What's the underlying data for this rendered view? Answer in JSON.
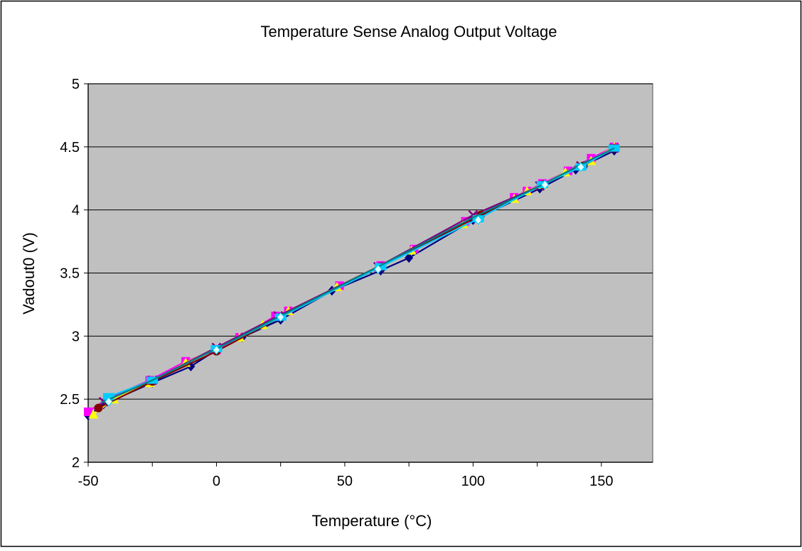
{
  "chart_data": {
    "type": "line",
    "title": "Temperature Sense Analog Output Voltage",
    "xlabel": "Temperature (°C)",
    "ylabel": "Vadout0 (V)",
    "xlim": [
      -50,
      170
    ],
    "ylim": [
      2,
      5
    ],
    "x_ticks": [
      -50,
      0,
      50,
      100,
      150
    ],
    "x_tick_labels": [
      "-50",
      "0",
      "50",
      "100",
      "150"
    ],
    "y_ticks": [
      2,
      2.5,
      3,
      3.5,
      4,
      4.5,
      5
    ],
    "y_tick_labels": [
      "2",
      "2.5",
      "3",
      "3.5",
      "4",
      "4.5",
      "5"
    ],
    "grid": "horizontal",
    "plot_background": "#c0c0c0",
    "legend": "none",
    "series": [
      {
        "color": "#000080",
        "marker": "diamond",
        "points": [
          [
            -50,
            2.37
          ],
          [
            -44,
            2.46
          ],
          [
            -25,
            2.63
          ],
          [
            -10,
            2.76
          ],
          [
            0,
            2.89
          ],
          [
            10,
            2.99
          ],
          [
            25,
            3.13
          ],
          [
            45,
            3.36
          ],
          [
            64,
            3.52
          ],
          [
            75,
            3.62
          ],
          [
            100,
            3.92
          ],
          [
            126,
            4.17
          ],
          [
            140,
            4.32
          ],
          [
            155,
            4.47
          ]
        ]
      },
      {
        "color": "#ff00ff",
        "marker": "square",
        "points": [
          [
            -50,
            2.4
          ],
          [
            -42,
            2.51
          ],
          [
            -26,
            2.65
          ],
          [
            -12,
            2.8
          ],
          [
            0,
            2.89
          ],
          [
            9,
            2.99
          ],
          [
            23,
            3.16
          ],
          [
            28,
            3.2
          ],
          [
            48,
            3.4
          ],
          [
            64,
            3.56
          ],
          [
            77,
            3.69
          ],
          [
            97,
            3.91
          ],
          [
            116,
            4.1
          ],
          [
            121,
            4.15
          ],
          [
            127,
            4.21
          ],
          [
            137,
            4.31
          ],
          [
            146,
            4.41
          ],
          [
            155,
            4.5
          ]
        ]
      },
      {
        "color": "#ffff00",
        "marker": "triangle",
        "points": [
          [
            -48,
            2.38
          ],
          [
            -40,
            2.5
          ],
          [
            -26,
            2.63
          ],
          [
            -12,
            2.79
          ],
          [
            9,
            2.99
          ],
          [
            18,
            3.09
          ],
          [
            28,
            3.2
          ],
          [
            47,
            3.39
          ],
          [
            76,
            3.68
          ],
          [
            96,
            3.89
          ],
          [
            116,
            4.09
          ],
          [
            121,
            4.15
          ],
          [
            127,
            4.2
          ],
          [
            136,
            4.3
          ],
          [
            146,
            4.39
          ],
          [
            155,
            4.5
          ]
        ]
      },
      {
        "color": "#800080",
        "marker": "x",
        "points": [
          [
            -44,
            2.48
          ],
          [
            -25,
            2.65
          ],
          [
            0,
            2.91
          ],
          [
            24,
            3.16
          ],
          [
            63,
            3.55
          ],
          [
            100,
            3.96
          ],
          [
            126,
            4.19
          ],
          [
            142,
            4.35
          ],
          [
            155,
            4.49
          ]
        ]
      },
      {
        "color": "#800000",
        "marker": "circle",
        "points": [
          [
            -46,
            2.43
          ],
          [
            -25,
            2.64
          ],
          [
            0,
            2.88
          ],
          [
            25,
            3.15
          ],
          [
            64,
            3.55
          ],
          [
            103,
            3.96
          ],
          [
            127,
            4.2
          ],
          [
            143,
            4.35
          ],
          [
            155,
            4.49
          ]
        ]
      },
      {
        "color": "#00ccff",
        "marker": "wide-square",
        "points": [
          [
            -42,
            2.52
          ],
          [
            -25,
            2.65
          ],
          [
            0,
            2.9
          ],
          [
            25,
            3.15
          ],
          [
            64,
            3.55
          ],
          [
            102,
            3.93
          ],
          [
            127,
            4.2
          ],
          [
            142,
            4.34
          ],
          [
            155,
            4.49
          ]
        ]
      },
      {
        "color": "#008080",
        "marker": "none",
        "points": [
          [
            -45,
            2.47
          ],
          [
            -25,
            2.65
          ],
          [
            0,
            2.9
          ],
          [
            25,
            3.16
          ],
          [
            64,
            3.56
          ],
          [
            100,
            3.94
          ],
          [
            126,
            4.19
          ],
          [
            141,
            4.35
          ],
          [
            155,
            4.49
          ]
        ]
      }
    ]
  }
}
